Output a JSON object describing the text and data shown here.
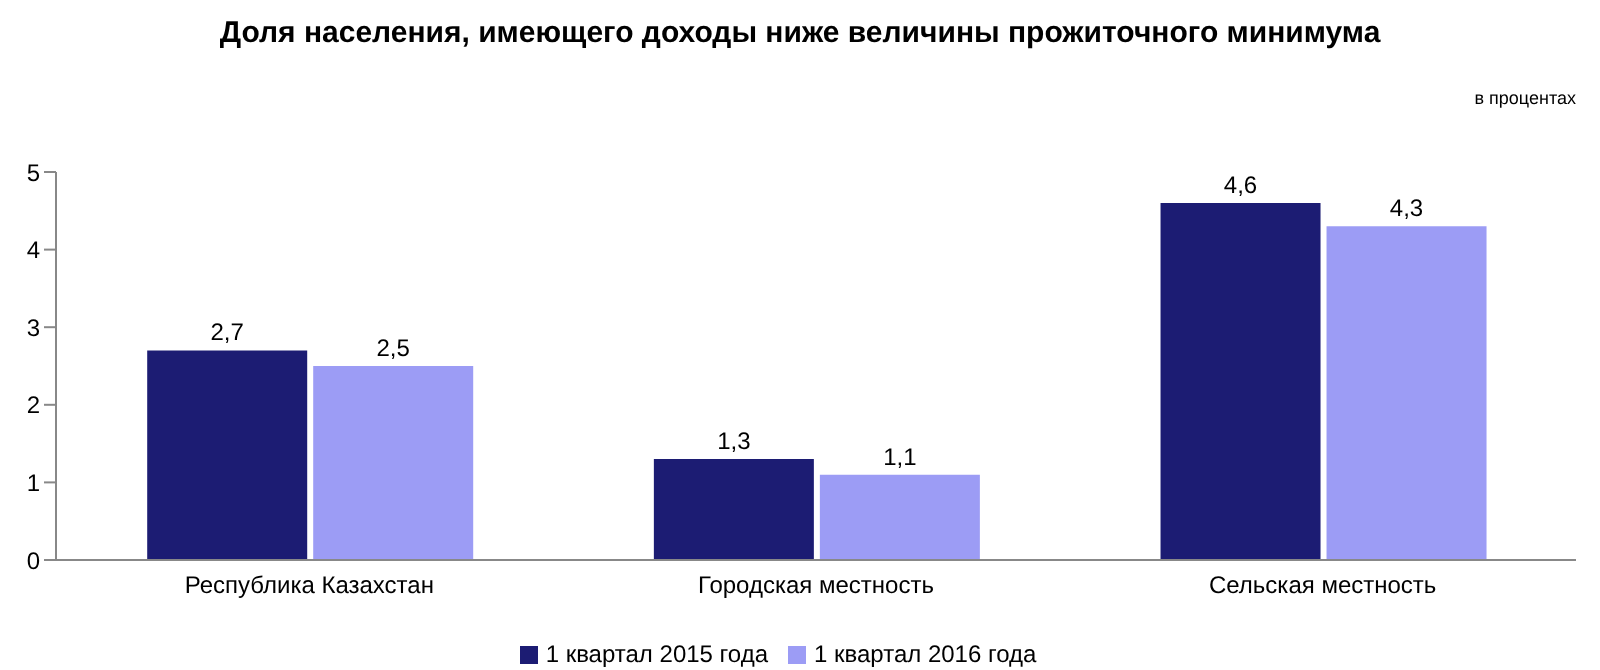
{
  "chart_data": {
    "type": "bar",
    "title": "Доля населения, имеющего доходы ниже величины прожиточного минимума",
    "annotations": [
      "в процентах"
    ],
    "categories": [
      "Республика Казахстан",
      "Городская местность",
      "Сельская местность"
    ],
    "series": [
      {
        "name": "1 квартал 2015 года",
        "color": "#1c1c73",
        "values": [
          2.7,
          1.3,
          4.6
        ],
        "value_labels": [
          "2,7",
          "1,3",
          "4,6"
        ]
      },
      {
        "name": "1 квартал 2016 года",
        "color": "#9c9cf5",
        "values": [
          2.5,
          1.1,
          4.3
        ],
        "value_labels": [
          "2,5",
          "1,1",
          "4,3"
        ]
      }
    ],
    "ylim": [
      0,
      5
    ],
    "yticks": [
      0,
      1,
      2,
      3,
      4,
      5
    ],
    "grid": false,
    "legend": "bottom"
  }
}
